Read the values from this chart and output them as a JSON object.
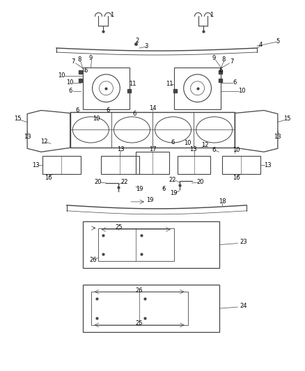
{
  "bg_color": "#ffffff",
  "line_color": "#444444",
  "text_color": "#000000",
  "fig_width": 4.38,
  "fig_height": 5.33,
  "dpi": 100
}
